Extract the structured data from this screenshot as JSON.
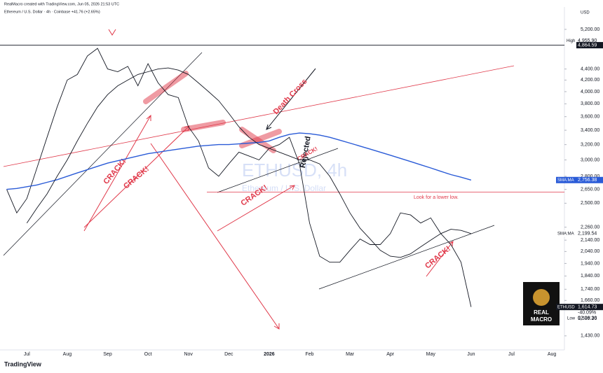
{
  "header": {
    "credit": "RealMacro created with TradingView.com, Jun 05, 2026 21:53 UTC",
    "symbol_line": "Ethereum / U.S. Dollar · 4h · Coinbase  +41.76 (+2.65%)",
    "currency": "USD"
  },
  "footer": {
    "brand": "TradingView"
  },
  "logo": {
    "line1": "REAL",
    "line2": "MACRO"
  },
  "watermark": {
    "symbol": "ETHUSD, 4h",
    "name": "Ethereum / U.S. Dollar"
  },
  "annotations": [
    "Death Cross",
    "Rejected",
    "Look for a lower low.",
    "CRACK!",
    "CRACK!",
    "CRACK!",
    "CRACK!",
    "CRACK!"
  ],
  "chart_data": {
    "type": "line",
    "log_scale": true,
    "categories": [
      null,
      null,
      "Jul",
      null,
      null,
      null,
      "Aug",
      null,
      null,
      null,
      "Sep",
      null,
      null,
      null,
      "Oct",
      null,
      null,
      null,
      "Nov",
      null,
      null,
      null,
      "Dec",
      null,
      null,
      null,
      "2026",
      null,
      null,
      null,
      "Feb",
      null,
      null,
      null,
      "Mar",
      null,
      null,
      null,
      "Apr",
      null,
      null,
      null,
      "May",
      null,
      null,
      null,
      "Jun",
      null,
      null,
      null,
      "Jul",
      null,
      null,
      null,
      "Aug"
    ],
    "series": [
      {
        "name": "ETHUSD",
        "color": "#131722",
        "values": [
          2650,
          2400,
          2550,
          2900,
          3300,
          3750,
          4200,
          4300,
          4650,
          4800,
          4400,
          4350,
          4450,
          4100,
          4500,
          4150,
          3950,
          3900,
          3450,
          3250,
          2900,
          2800,
          2950,
          3100,
          3050,
          3000,
          3150,
          3200,
          3300,
          2950,
          2300,
          2000,
          1950,
          1950,
          2050,
          2150,
          2100,
          2100,
          2200,
          2400,
          2380,
          2300,
          2350,
          2200,
          2100,
          1950,
          1615,
          null,
          null,
          null,
          null,
          null,
          null,
          null,
          null
        ],
        "last_label": {
          "value": 1614.73,
          "label": "1,614.73"
        },
        "change": "-40.09%",
        "countdown": "02:06:30"
      },
      {
        "name": "SMA:MA",
        "color": "#2a5bd7",
        "values": [
          2650,
          2660,
          2680,
          2700,
          2730,
          2760,
          2800,
          2840,
          2880,
          2920,
          2960,
          2990,
          3020,
          3050,
          3080,
          3100,
          3120,
          3140,
          3160,
          3180,
          3190,
          3200,
          3200,
          3210,
          3220,
          3230,
          3250,
          3300,
          3340,
          3360,
          3350,
          3330,
          3300,
          3260,
          3220,
          3180,
          3140,
          3100,
          3060,
          3020,
          2980,
          2940,
          2900,
          2860,
          2820,
          2790,
          2756,
          null,
          null,
          null,
          null,
          null,
          null,
          null,
          null
        ],
        "last_label": {
          "value": 2756.38,
          "label": "2,756.38"
        }
      },
      {
        "name": "SMA:MA",
        "color": "#131722",
        "values": [
          null,
          null,
          2300,
          2450,
          2600,
          2800,
          3000,
          3250,
          3500,
          3750,
          3950,
          4100,
          4200,
          4300,
          4350,
          4400,
          4420,
          4380,
          4300,
          4150,
          4000,
          3850,
          3650,
          3450,
          3300,
          3200,
          3150,
          3100,
          3050,
          3000,
          3000,
          2950,
          2800,
          2600,
          2400,
          2250,
          2150,
          2050,
          2000,
          1990,
          2020,
          2080,
          2140,
          2200,
          2240,
          2230,
          2200,
          null,
          null,
          null,
          null,
          null,
          null,
          null,
          null
        ],
        "last_label": {
          "value": 2199.54,
          "label": "2,199.54"
        }
      }
    ],
    "high": {
      "text": "High",
      "price": {
        "value": 4955.9,
        "label": "4,955.90"
      }
    },
    "low": {
      "text": "Low",
      "price": {
        "value": 1539.26,
        "label": "1,539.26"
      }
    },
    "levels": [
      {
        "price": {
          "value": 4864.59,
          "label": "4,864.59"
        },
        "color": "#131722"
      },
      {
        "price": {
          "value": 2620,
          "label": "2,620.00"
        },
        "color": "#e0394a"
      }
    ],
    "ylim": [
      1388,
      5630
    ],
    "yticks": [
      {
        "value": 5200,
        "label": "5,200.00"
      },
      {
        "value": 4400,
        "label": "4,400.00"
      },
      {
        "value": 4200,
        "label": "4,200.00"
      },
      {
        "value": 4000,
        "label": "4,000.00"
      },
      {
        "value": 3800,
        "label": "3,800.00"
      },
      {
        "value": 3600,
        "label": "3,600.00"
      },
      {
        "value": 3400,
        "label": "3,400.00"
      },
      {
        "value": 3200,
        "label": "3,200.00"
      },
      {
        "value": 3000,
        "label": "3,000.00"
      },
      {
        "value": 2800,
        "label": "2,800.00"
      },
      {
        "value": 2650,
        "label": "2,650.00"
      },
      {
        "value": 2500,
        "label": "2,500.00"
      },
      {
        "value": 2260,
        "label": "2,260.00"
      },
      {
        "value": 2140,
        "label": "2,140.00"
      },
      {
        "value": 2040,
        "label": "2,040.00"
      },
      {
        "value": 1940,
        "label": "1,940.00"
      },
      {
        "value": 1840,
        "label": "1,840.00"
      },
      {
        "value": 1740,
        "label": "1,740.00"
      },
      {
        "value": 1660,
        "label": "1,660.00"
      },
      {
        "value": 1430,
        "label": "1,430.00"
      }
    ],
    "grid": false
  }
}
